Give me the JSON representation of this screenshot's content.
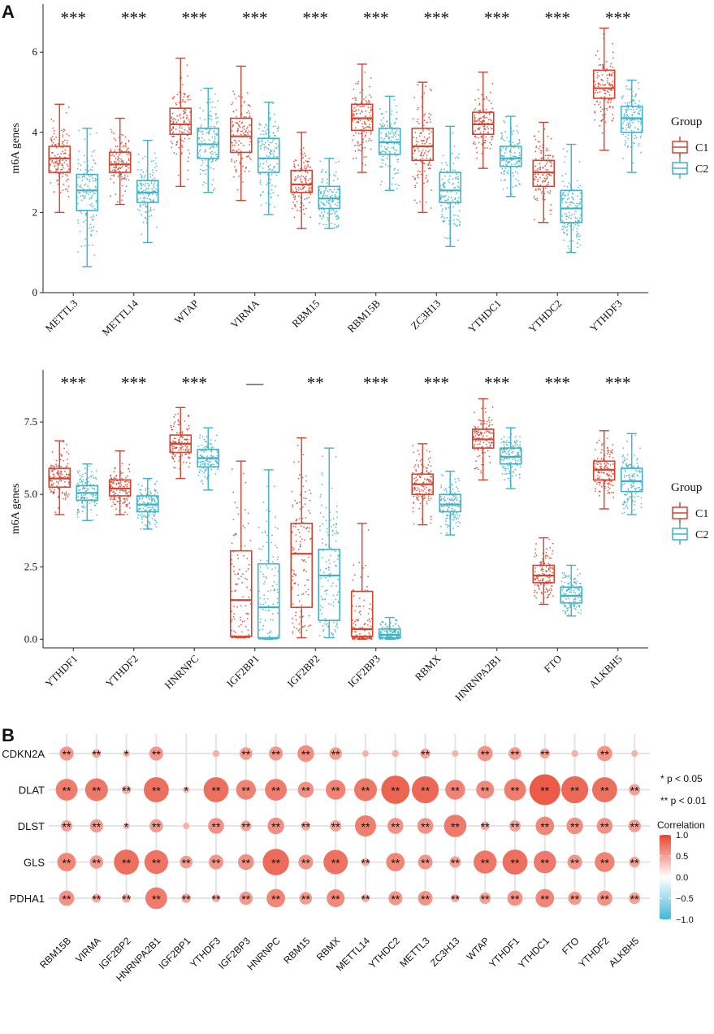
{
  "panel_labels": {
    "a": "A",
    "b": "B"
  },
  "colors": {
    "c1": "#d6432f",
    "c2": "#3fb2c9",
    "grid": "#e4e4e4",
    "axis": "#222222",
    "pos": "#e8442e",
    "neg": "#44b6d6"
  },
  "chart_data": [
    {
      "type": "box",
      "panel": "A-top",
      "ylabel": "m6A genes",
      "ylim": [
        0,
        7.2
      ],
      "yticks": [
        0,
        2,
        4,
        6
      ],
      "yticklabels": [
        "0",
        "2",
        "4",
        "6"
      ],
      "legend": {
        "title": "Group",
        "entries": [
          "C1",
          "C2"
        ],
        "position": "right"
      },
      "categories": [
        "METTL3",
        "METTL14",
        "WTAP",
        "VIRMA",
        "RBM15",
        "RBM15B",
        "ZC3H13",
        "YTHDC1",
        "YTHDC2",
        "YTHDF3"
      ],
      "significance": [
        "***",
        "***",
        "***",
        "***",
        "***",
        "***",
        "***",
        "***",
        "***",
        "***"
      ],
      "series": [
        {
          "name": "C1",
          "boxes": [
            {
              "min": 2.0,
              "q1": 3.0,
              "median": 3.35,
              "q3": 3.65,
              "max": 4.7
            },
            {
              "min": 2.2,
              "q1": 3.0,
              "median": 3.2,
              "q3": 3.5,
              "max": 4.35
            },
            {
              "min": 2.65,
              "q1": 3.95,
              "median": 4.2,
              "q3": 4.6,
              "max": 5.85
            },
            {
              "min": 2.3,
              "q1": 3.5,
              "median": 3.9,
              "q3": 4.35,
              "max": 5.65
            },
            {
              "min": 1.6,
              "q1": 2.5,
              "median": 2.7,
              "q3": 3.05,
              "max": 4.0
            },
            {
              "min": 3.0,
              "q1": 4.05,
              "median": 4.35,
              "q3": 4.7,
              "max": 5.7
            },
            {
              "min": 2.0,
              "q1": 3.3,
              "median": 3.65,
              "q3": 4.1,
              "max": 5.25
            },
            {
              "min": 3.1,
              "q1": 3.95,
              "median": 4.2,
              "q3": 4.5,
              "max": 5.5
            },
            {
              "min": 1.75,
              "q1": 2.65,
              "median": 3.0,
              "q3": 3.3,
              "max": 4.25
            },
            {
              "min": 3.55,
              "q1": 4.85,
              "median": 5.1,
              "q3": 5.55,
              "max": 6.6
            }
          ]
        },
        {
          "name": "C2",
          "boxes": [
            {
              "min": 0.65,
              "q1": 2.05,
              "median": 2.55,
              "q3": 2.95,
              "max": 4.1
            },
            {
              "min": 1.25,
              "q1": 2.25,
              "median": 2.5,
              "q3": 2.8,
              "max": 3.8
            },
            {
              "min": 2.5,
              "q1": 3.35,
              "median": 3.7,
              "q3": 4.1,
              "max": 5.1
            },
            {
              "min": 1.95,
              "q1": 3.0,
              "median": 3.35,
              "q3": 3.85,
              "max": 4.75
            },
            {
              "min": 1.6,
              "q1": 2.1,
              "median": 2.35,
              "q3": 2.65,
              "max": 3.35
            },
            {
              "min": 2.55,
              "q1": 3.45,
              "median": 3.75,
              "q3": 4.1,
              "max": 4.9
            },
            {
              "min": 1.15,
              "q1": 2.25,
              "median": 2.55,
              "q3": 3.0,
              "max": 4.15
            },
            {
              "min": 2.4,
              "q1": 3.15,
              "median": 3.35,
              "q3": 3.65,
              "max": 4.4
            },
            {
              "min": 1.0,
              "q1": 1.75,
              "median": 2.1,
              "q3": 2.55,
              "max": 3.7
            },
            {
              "min": 3.0,
              "q1": 4.0,
              "median": 4.35,
              "q3": 4.65,
              "max": 5.3
            }
          ]
        }
      ]
    },
    {
      "type": "box",
      "panel": "A-bottom",
      "ylabel": "m6A genes",
      "ylim": [
        -0.3,
        9.3
      ],
      "yticks": [
        0,
        2.5,
        5,
        7.5
      ],
      "yticklabels": [
        "0.0",
        "2.5",
        "5.0",
        "7.5"
      ],
      "legend": {
        "title": "Group",
        "entries": [
          "C1",
          "C2"
        ],
        "position": "right"
      },
      "categories": [
        "YTHDF1",
        "YTHDF2",
        "HNRNPC",
        "IGF2BP1",
        "IGF2BP2",
        "IGF2BP3",
        "RBMX",
        "HNRNPA2B1",
        "FTO",
        "ALKBH5"
      ],
      "significance": [
        "***",
        "***",
        "***",
        "—",
        "**",
        "***",
        "***",
        "***",
        "***",
        "***"
      ],
      "series": [
        {
          "name": "C1",
          "boxes": [
            {
              "min": 4.3,
              "q1": 5.25,
              "median": 5.55,
              "q3": 5.9,
              "max": 6.85
            },
            {
              "min": 4.3,
              "q1": 4.95,
              "median": 5.2,
              "q3": 5.5,
              "max": 6.5
            },
            {
              "min": 5.55,
              "q1": 6.45,
              "median": 6.75,
              "q3": 7.05,
              "max": 8.0
            },
            {
              "min": 0.05,
              "q1": 0.1,
              "median": 1.35,
              "q3": 3.05,
              "max": 6.15
            },
            {
              "min": 0.05,
              "q1": 1.1,
              "median": 2.95,
              "q3": 4.0,
              "max": 6.95
            },
            {
              "min": 0.0,
              "q1": 0.1,
              "median": 0.35,
              "q3": 1.65,
              "max": 4.0
            },
            {
              "min": 3.95,
              "q1": 5.0,
              "median": 5.35,
              "q3": 5.7,
              "max": 6.75
            },
            {
              "min": 5.5,
              "q1": 6.6,
              "median": 6.9,
              "q3": 7.25,
              "max": 8.3
            },
            {
              "min": 1.2,
              "q1": 1.95,
              "median": 2.2,
              "q3": 2.55,
              "max": 3.5
            },
            {
              "min": 4.5,
              "q1": 5.5,
              "median": 5.85,
              "q3": 6.15,
              "max": 7.2
            }
          ]
        },
        {
          "name": "C2",
          "boxes": [
            {
              "min": 4.1,
              "q1": 4.8,
              "median": 5.05,
              "q3": 5.3,
              "max": 6.05
            },
            {
              "min": 3.8,
              "q1": 4.4,
              "median": 4.65,
              "q3": 4.95,
              "max": 5.55
            },
            {
              "min": 5.15,
              "q1": 5.95,
              "median": 6.25,
              "q3": 6.55,
              "max": 7.3
            },
            {
              "min": 0.0,
              "q1": 0.05,
              "median": 1.1,
              "q3": 2.6,
              "max": 5.85
            },
            {
              "min": 0.05,
              "q1": 0.65,
              "median": 2.2,
              "q3": 3.1,
              "max": 6.6
            },
            {
              "min": 0.0,
              "q1": 0.05,
              "median": 0.15,
              "q3": 0.35,
              "max": 0.75
            },
            {
              "min": 3.6,
              "q1": 4.4,
              "median": 4.65,
              "q3": 5.0,
              "max": 5.8
            },
            {
              "min": 5.2,
              "q1": 6.05,
              "median": 6.3,
              "q3": 6.6,
              "max": 7.3
            },
            {
              "min": 0.8,
              "q1": 1.25,
              "median": 1.5,
              "q3": 1.8,
              "max": 2.55
            },
            {
              "min": 4.3,
              "q1": 5.1,
              "median": 5.45,
              "q3": 5.9,
              "max": 7.1
            }
          ]
        }
      ]
    },
    {
      "type": "bubble-correlation",
      "panel": "B",
      "rows": [
        "CDKN2A",
        "DLAT",
        "DLST",
        "GLS",
        "PDHA1"
      ],
      "columns": [
        "RBM15B",
        "VIRMA",
        "IGF2BP2",
        "HNRNPA2B1",
        "IGF2BP1",
        "YTHDF3",
        "IGF2BP3",
        "HNRNPC",
        "RBM15",
        "RBMX",
        "METTL14",
        "YTHDC2",
        "METTL3",
        "ZC3H13",
        "WTAP",
        "YTHDF1",
        "YTHDC1",
        "FTO",
        "YTHDF2",
        "ALKBH5"
      ],
      "correlation": [
        [
          0.28,
          0.12,
          0.06,
          0.28,
          0.0,
          0.06,
          0.24,
          0.28,
          0.36,
          0.24,
          0.05,
          0.06,
          0.16,
          0.05,
          0.32,
          0.24,
          0.16,
          0.06,
          0.32,
          0.05
        ],
        [
          0.52,
          0.55,
          0.12,
          0.62,
          0.05,
          0.62,
          0.46,
          0.52,
          0.34,
          0.46,
          0.55,
          0.72,
          0.68,
          0.46,
          0.4,
          0.52,
          0.8,
          0.68,
          0.62,
          0.2
        ],
        [
          0.2,
          0.26,
          0.05,
          0.26,
          0.05,
          0.34,
          0.18,
          0.36,
          0.14,
          0.2,
          0.5,
          0.34,
          0.34,
          0.54,
          0.12,
          0.2,
          0.42,
          0.36,
          0.34,
          0.24
        ],
        [
          0.42,
          0.26,
          0.62,
          0.58,
          0.24,
          0.3,
          0.34,
          0.66,
          0.3,
          0.6,
          0.1,
          0.42,
          0.3,
          0.2,
          0.56,
          0.62,
          0.54,
          0.3,
          0.46,
          0.18
        ],
        [
          0.32,
          0.12,
          0.12,
          0.52,
          0.14,
          0.1,
          0.26,
          0.42,
          0.24,
          0.4,
          0.1,
          0.28,
          0.3,
          0.1,
          0.2,
          0.32,
          0.42,
          0.26,
          0.32,
          0.2
        ]
      ],
      "stars": [
        [
          "**",
          "**",
          "*",
          "**",
          "",
          "",
          "**",
          "**",
          "**",
          "**",
          "",
          "",
          "**",
          "",
          "**",
          "**",
          "**",
          "",
          "**",
          ""
        ],
        [
          "**",
          "**",
          "**",
          "**",
          "*",
          "**",
          "**",
          "**",
          "**",
          "**",
          "**",
          "**",
          "**",
          "**",
          "**",
          "**",
          "**",
          "**",
          "**",
          "**"
        ],
        [
          "**",
          "**",
          "*",
          "**",
          "",
          "**",
          "**",
          "**",
          "**",
          "**",
          "**",
          "**",
          "**",
          "**",
          "**",
          "**",
          "**",
          "**",
          "**",
          "**"
        ],
        [
          "**",
          "**",
          "**",
          "**",
          "**",
          "**",
          "**",
          "**",
          "**",
          "**",
          "**",
          "**",
          "**",
          "**",
          "**",
          "**",
          "**",
          "**",
          "**",
          "**"
        ],
        [
          "**",
          "**",
          "**",
          "**",
          "**",
          "**",
          "**",
          "**",
          "**",
          "**",
          "**",
          "**",
          "**",
          "**",
          "**",
          "**",
          "**",
          "**",
          "**",
          "**"
        ]
      ],
      "notes": [
        "* p < 0.05",
        "** p < 0.01"
      ],
      "colorbar": {
        "title": "Correlation",
        "range": [
          -1,
          1
        ],
        "ticks": [
          1.0,
          0.5,
          0.0,
          -0.5,
          -1.0
        ],
        "ticklabels": [
          "1.0",
          "0.5",
          "0.0",
          "−0.5",
          "−1.0"
        ]
      }
    }
  ]
}
